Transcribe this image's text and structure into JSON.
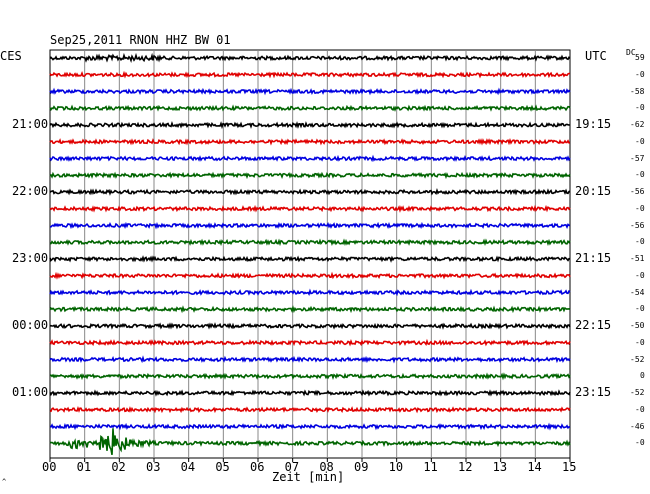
{
  "chart_data": {
    "type": "line",
    "title": "Sep25,2011   RNON HHZ BW 01",
    "left_zone": "CES",
    "right_zone": "UTC",
    "dc_label": "DC",
    "xlabel": "Zeit [min]",
    "xlim": [
      0,
      15
    ],
    "x_ticks": [
      "00",
      "01",
      "02",
      "03",
      "04",
      "05",
      "06",
      "07",
      "08",
      "09",
      "10",
      "11",
      "12",
      "13",
      "14",
      "15"
    ],
    "left_hour_labels": [
      {
        "row": 4,
        "label": "21:00"
      },
      {
        "row": 8,
        "label": "22:00"
      },
      {
        "row": 12,
        "label": "23:00"
      },
      {
        "row": 16,
        "label": "00:00"
      },
      {
        "row": 20,
        "label": "01:00"
      }
    ],
    "right_hour_labels": [
      {
        "row": 4,
        "label": "19:15"
      },
      {
        "row": 8,
        "label": "20:15"
      },
      {
        "row": 12,
        "label": "21:15"
      },
      {
        "row": 16,
        "label": "22:15"
      },
      {
        "row": 20,
        "label": "23:15"
      }
    ],
    "trace_colors": [
      "#000000",
      "#e00000",
      "#0000e0",
      "#006400"
    ],
    "dc_offsets": [
      "59",
      "-0",
      "-58",
      "-0",
      "-62",
      "-0",
      "-57",
      "-0",
      "-56",
      "-0",
      "-56",
      "-0",
      "-51",
      "-0",
      "-54",
      "-0",
      "-50",
      "-0",
      "-52",
      "0",
      "-52",
      "-0",
      "-46",
      "-0"
    ],
    "traces": 24,
    "event": {
      "row": 23,
      "start_min": 0.3,
      "peak_min": 1.8,
      "end_min": 3.0
    }
  },
  "corner_mark": "^"
}
